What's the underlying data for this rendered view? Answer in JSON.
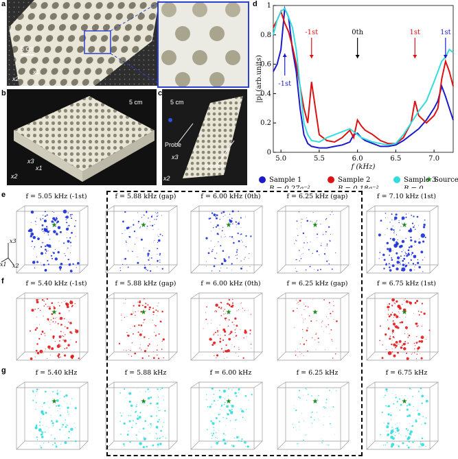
{
  "panels": {
    "a": {
      "label": "a",
      "scale": "5 cm",
      "axes": [
        "x2",
        "x1"
      ]
    },
    "b": {
      "label": "b",
      "scale": "5 cm",
      "axes": [
        "x3",
        "x1",
        "x2"
      ]
    },
    "c": {
      "label": "c",
      "scale": "5 cm",
      "axes": [
        "x3",
        "x2"
      ],
      "probe": "Probe",
      "source": "Source"
    },
    "d": {
      "label": "d"
    },
    "e": {
      "label": "e"
    },
    "f": {
      "label": "f"
    },
    "g": {
      "label": "g"
    }
  },
  "chart_data": {
    "type": "line",
    "xlabel": "f (kHz)",
    "ylabel": "|p| (arb.units)",
    "xlim": [
      4.9,
      7.25
    ],
    "ylim": [
      0,
      1
    ],
    "xticks": [
      "5.0",
      "5.5",
      "6.0",
      "6.5",
      "7.0"
    ],
    "yticks": [
      "0",
      "0.2",
      "0.4",
      "0.6",
      "0.8",
      "1"
    ],
    "series": [
      {
        "name": "Sample 1",
        "param": "B = 0.27a⁻²",
        "color": "#1a1acc",
        "x": [
          4.9,
          4.95,
          5.0,
          5.05,
          5.1,
          5.15,
          5.2,
          5.25,
          5.3,
          5.35,
          5.4,
          5.5,
          5.6,
          5.7,
          5.8,
          5.9,
          5.95,
          6.0,
          6.05,
          6.1,
          6.2,
          6.3,
          6.4,
          6.5,
          6.6,
          6.7,
          6.8,
          6.9,
          7.0,
          7.05,
          7.1,
          7.15,
          7.2,
          7.25
        ],
        "y": [
          0.55,
          0.6,
          0.7,
          0.98,
          0.92,
          0.7,
          0.55,
          0.3,
          0.12,
          0.06,
          0.04,
          0.03,
          0.03,
          0.04,
          0.05,
          0.07,
          0.12,
          0.13,
          0.1,
          0.08,
          0.06,
          0.04,
          0.04,
          0.05,
          0.08,
          0.12,
          0.16,
          0.22,
          0.3,
          0.35,
          0.45,
          0.38,
          0.3,
          0.22
        ]
      },
      {
        "name": "Sample 2",
        "param": "B = 0.18a⁻²",
        "color": "#dd1111",
        "x": [
          4.9,
          4.95,
          5.0,
          5.05,
          5.1,
          5.15,
          5.2,
          5.25,
          5.3,
          5.35,
          5.4,
          5.45,
          5.5,
          5.6,
          5.7,
          5.8,
          5.9,
          5.95,
          6.0,
          6.05,
          6.1,
          6.2,
          6.3,
          6.4,
          6.5,
          6.6,
          6.7,
          6.75,
          6.8,
          6.9,
          7.0,
          7.05,
          7.1,
          7.15,
          7.2,
          7.25
        ],
        "y": [
          0.85,
          0.9,
          0.96,
          0.88,
          0.82,
          0.72,
          0.6,
          0.45,
          0.3,
          0.2,
          0.48,
          0.3,
          0.12,
          0.08,
          0.07,
          0.1,
          0.15,
          0.1,
          0.22,
          0.18,
          0.15,
          0.12,
          0.08,
          0.06,
          0.06,
          0.1,
          0.2,
          0.35,
          0.25,
          0.2,
          0.25,
          0.3,
          0.5,
          0.62,
          0.55,
          0.45
        ]
      },
      {
        "name": "Sample 3",
        "param": "B = 0",
        "color": "#33dddd",
        "x": [
          4.9,
          4.95,
          5.0,
          5.05,
          5.1,
          5.15,
          5.2,
          5.25,
          5.3,
          5.35,
          5.4,
          5.5,
          5.6,
          5.7,
          5.8,
          5.9,
          5.95,
          6.0,
          6.05,
          6.1,
          6.2,
          6.3,
          6.4,
          6.5,
          6.6,
          6.7,
          6.8,
          6.9,
          7.0,
          7.05,
          7.1,
          7.15,
          7.2,
          7.25
        ],
        "y": [
          0.8,
          0.9,
          0.96,
          0.98,
          0.92,
          0.85,
          0.7,
          0.45,
          0.2,
          0.12,
          0.08,
          0.07,
          0.1,
          0.12,
          0.14,
          0.16,
          0.14,
          0.12,
          0.1,
          0.09,
          0.07,
          0.06,
          0.05,
          0.06,
          0.12,
          0.2,
          0.28,
          0.35,
          0.48,
          0.55,
          0.62,
          0.65,
          0.7,
          0.68
        ]
      }
    ],
    "annotations": [
      {
        "text": "-1st",
        "x": 5.05,
        "color": "#1a1acc",
        "arrow": "up"
      },
      {
        "text": "-1st",
        "x": 5.4,
        "color": "#dd1111",
        "arrow": "down"
      },
      {
        "text": "0th",
        "x": 6.0,
        "color": "#000000",
        "arrow": "down"
      },
      {
        "text": "1st",
        "x": 6.75,
        "color": "#dd1111",
        "arrow": "down"
      },
      {
        "text": "1st",
        "x": 7.15,
        "color": "#1a1acc",
        "arrow": "down"
      }
    ],
    "legend": {
      "source": "Source",
      "placement": "bottom"
    }
  },
  "rows": {
    "e": {
      "color": "#1a2ed6",
      "titles": [
        "f = 5.05 kHz (-1st)",
        "f = 5.88 kHz (gap)",
        "f = 6.00 kHz (0th)",
        "f = 6.25 kHz (gap)",
        "f = 7.10 kHz (1st)"
      ],
      "density": [
        0.9,
        0.5,
        0.6,
        0.35,
        0.95
      ]
    },
    "f": {
      "color": "#e01818",
      "titles": [
        "f = 5.40 kHz (-1st)",
        "f = 5.88 kHz (gap)",
        "f = 6.00 kHz (0th)",
        "f = 6.25 kHz (gap)",
        "f = 6.75 kHz (1st)"
      ],
      "density": [
        0.85,
        0.55,
        0.7,
        0.35,
        0.85
      ]
    },
    "g": {
      "color": "#33dddd",
      "titles": [
        "f = 5.40 kHz",
        "f = 5.88 kHz",
        "f = 6.00 kHz",
        "f = 6.25 kHz",
        "f = 6.75 kHz"
      ],
      "density": [
        0.7,
        0.65,
        0.6,
        0.3,
        0.75
      ]
    }
  },
  "axes_e": [
    "x3",
    "x1",
    "x2"
  ]
}
